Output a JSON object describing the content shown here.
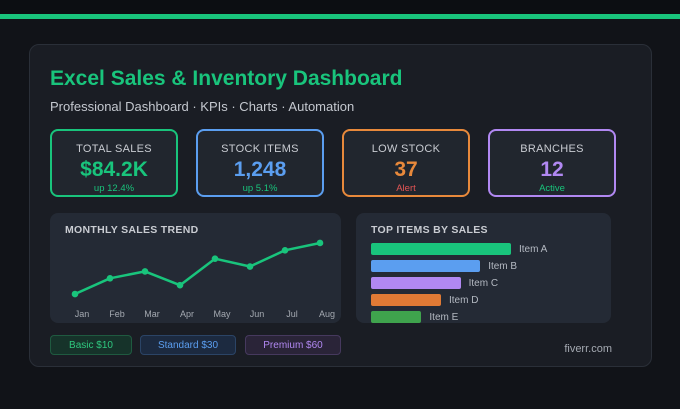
{
  "header": {
    "title": "Excel Sales & Inventory Dashboard",
    "subtitle": "Professional Dashboard · KPIs · Charts · Automation"
  },
  "kpis": [
    {
      "label": "TOTAL SALES",
      "value": "$84.2K",
      "sub": "up 12.4%",
      "color": "#19c47c",
      "sub_color": "#19c47c"
    },
    {
      "label": "STOCK ITEMS",
      "value": "1,248",
      "sub": "up 5.1%",
      "color": "#5b9ef0",
      "sub_color": "#19c47c"
    },
    {
      "label": "LOW STOCK",
      "value": "37",
      "sub": "Alert",
      "color": "#e8893b",
      "sub_color": "#e25555"
    },
    {
      "label": "BRANCHES",
      "value": "12",
      "sub": "Active",
      "color": "#b188f2",
      "sub_color": "#19c47c"
    }
  ],
  "trend": {
    "title": "MONTHLY SALES TREND",
    "color": "#19c47c"
  },
  "top_items": {
    "title": "TOP ITEMS BY SALES"
  },
  "pricing": [
    {
      "label": "Basic $10",
      "color": "#2fc87f",
      "bg": "#16332a",
      "border": "#1f5a40"
    },
    {
      "label": "Standard $30",
      "color": "#5b9ef0",
      "bg": "#1c2a40",
      "border": "#2b4466"
    },
    {
      "label": "Premium $60",
      "color": "#b188f2",
      "bg": "#2a2438",
      "border": "#46395e"
    }
  ],
  "footer": {
    "credit": "fiverr.com"
  },
  "chart_data": [
    {
      "type": "line",
      "title": "MONTHLY SALES TREND",
      "categories": [
        "Jan",
        "Feb",
        "Mar",
        "Apr",
        "May",
        "Jun",
        "Jul",
        "Aug"
      ],
      "values": [
        2,
        34,
        48,
        20,
        74,
        58,
        91,
        106
      ],
      "ylim": [
        0,
        110
      ],
      "grid": false,
      "color": "#19c47c"
    },
    {
      "type": "bar",
      "orientation": "horizontal",
      "title": "TOP ITEMS BY SALES",
      "categories": [
        "Item A",
        "Item B",
        "Item C",
        "Item D",
        "Item E"
      ],
      "values": [
        100,
        78,
        64,
        50,
        36
      ],
      "colors": [
        "#19c47c",
        "#5b9ef0",
        "#b188f2",
        "#e07a35",
        "#3fa34d"
      ]
    }
  ]
}
